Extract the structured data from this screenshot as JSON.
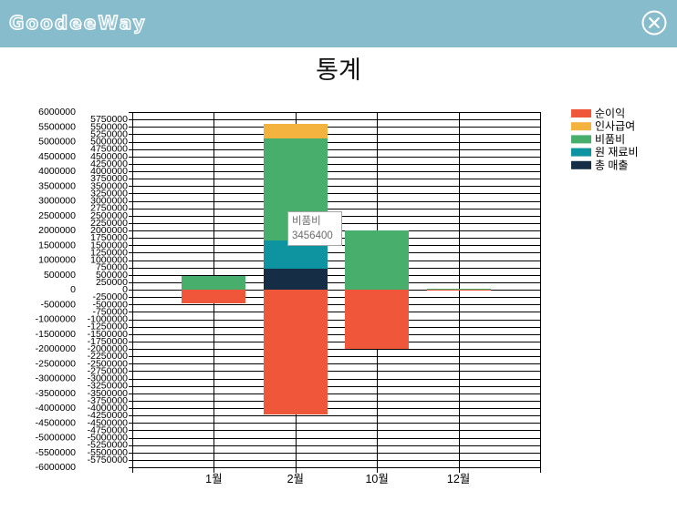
{
  "app": {
    "logo": "GoodeeWay"
  },
  "theme": {
    "header_bg": "#87BCCC"
  },
  "icons": {
    "close": "close-icon"
  },
  "page": {
    "title": "통계"
  },
  "tooltip": {
    "label": "비품비",
    "value": "3456400"
  },
  "chart_data": {
    "type": "bar",
    "stacked": true,
    "categories": [
      "1월",
      "2월",
      "10월",
      "12월"
    ],
    "series": [
      {
        "name": "순이익",
        "color": "#EF563A",
        "values": [
          -450000,
          -4206400,
          -2000000,
          -30000
        ]
      },
      {
        "name": "인사급여",
        "color": "#F4B23E",
        "values": [
          0,
          500000,
          0,
          0
        ]
      },
      {
        "name": "비품비",
        "color": "#47AE6B",
        "values": [
          450000,
          3456400,
          2000000,
          30000
        ]
      },
      {
        "name": "원 재료비",
        "color": "#0E94A1",
        "values": [
          0,
          950000,
          0,
          0
        ]
      },
      {
        "name": "총 매출",
        "color": "#162E45",
        "values": [
          0,
          700000,
          0,
          0
        ]
      }
    ],
    "ylim": [
      -6000000,
      6000000
    ],
    "y_axis_outer_ticks": [
      6000000,
      5500000,
      5000000,
      4500000,
      4000000,
      3500000,
      3000000,
      2500000,
      2000000,
      1500000,
      1000000,
      500000,
      0,
      -500000,
      -1000000,
      -1500000,
      -2000000,
      -2500000,
      -3000000,
      -3500000,
      -4000000,
      -4500000,
      -5000000,
      -5500000,
      -6000000
    ],
    "y_axis_inner_ticks": [
      5750000,
      5500000,
      5250000,
      5000000,
      4750000,
      4500000,
      4250000,
      4000000,
      3750000,
      3500000,
      3250000,
      3000000,
      2750000,
      2500000,
      2250000,
      2000000,
      1750000,
      1500000,
      1250000,
      1000000,
      750000,
      500000,
      250000,
      0,
      -250000,
      -500000,
      -750000,
      -1000000,
      -1250000,
      -1500000,
      -1750000,
      -2000000,
      -2250000,
      -2500000,
      -2750000,
      -3000000,
      -3250000,
      -3500000,
      -3750000,
      -4000000,
      -4250000,
      -4500000,
      -4750000,
      -5000000,
      -5250000,
      -5500000,
      -5750000
    ],
    "grid": true,
    "legend": "right"
  }
}
